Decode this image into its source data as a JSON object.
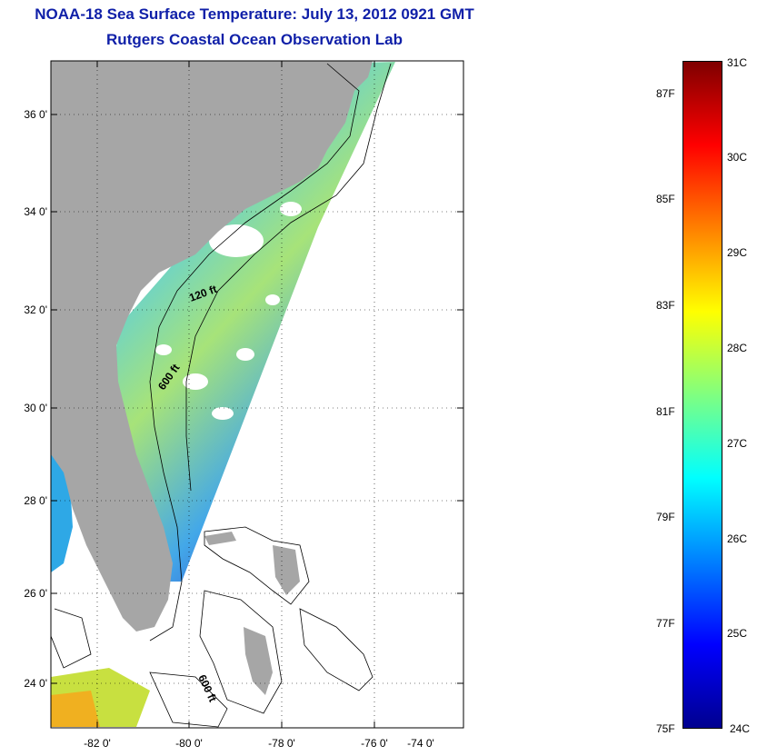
{
  "title_line1": "NOAA-18 Sea Surface Temperature:  July 13, 2012 0921 GMT",
  "title_line2": "Rutgers Coastal Ocean Observation Lab",
  "map": {
    "lat_labels": [
      "36 0'",
      "34 0'",
      "32 0'",
      "30 0'",
      "28 0'",
      "26 0'",
      "24 0'"
    ],
    "lon_labels": [
      "-82 0'",
      "-80 0'",
      "-78 0'",
      "-76 0'",
      "-74 0'"
    ],
    "contour_labels": [
      "120 ft",
      "600 ft",
      "600 ft"
    ]
  },
  "colorbar": {
    "celsius_labels": [
      "31C",
      "30C",
      "29C",
      "28C",
      "27C",
      "26C",
      "25C",
      "24C"
    ],
    "fahrenheit_labels": [
      "87F",
      "85F",
      "83F",
      "81F",
      "79F",
      "77F",
      "75F"
    ],
    "colormap": [
      "#7f0000",
      "#ff0000",
      "#ff8000",
      "#ffff00",
      "#80ff80",
      "#00ffff",
      "#0080ff",
      "#0000ff",
      "#00008f"
    ]
  },
  "colors": {
    "title": "#0f1fa8",
    "land": "#a6a6a6",
    "missing": "#ffffff"
  }
}
